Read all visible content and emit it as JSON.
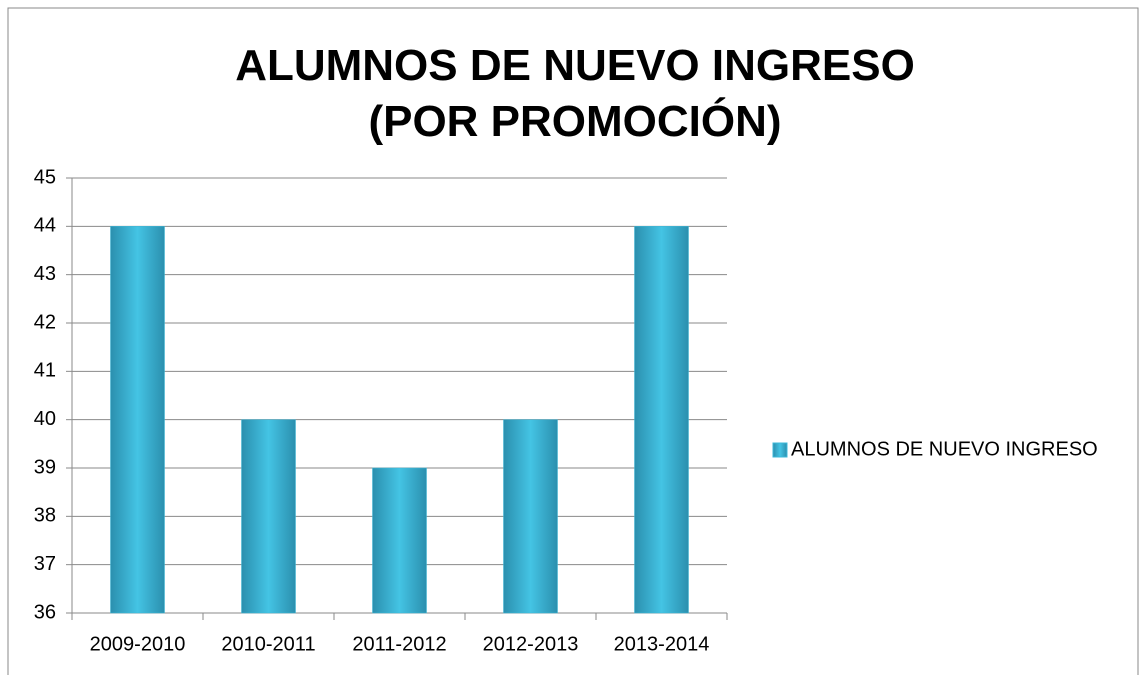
{
  "chart_data": {
    "type": "bar",
    "title": "ALUMNOS DE NUEVO INGRESO (POR PROMOCIÓN)",
    "categories": [
      "2009-2010",
      "2010-2011",
      "2011-2012",
      "2012-2013",
      "2013-2014"
    ],
    "series": [
      {
        "name": "ALUMNOS DE NUEVO INGRESO",
        "color": "#3cb8d8",
        "values": [
          44,
          40,
          39,
          40,
          44
        ]
      }
    ],
    "ylim": [
      36,
      45
    ],
    "yticks": [
      36,
      37,
      38,
      39,
      40,
      41,
      42,
      43,
      44,
      45
    ],
    "grid": true,
    "legend": "right"
  }
}
